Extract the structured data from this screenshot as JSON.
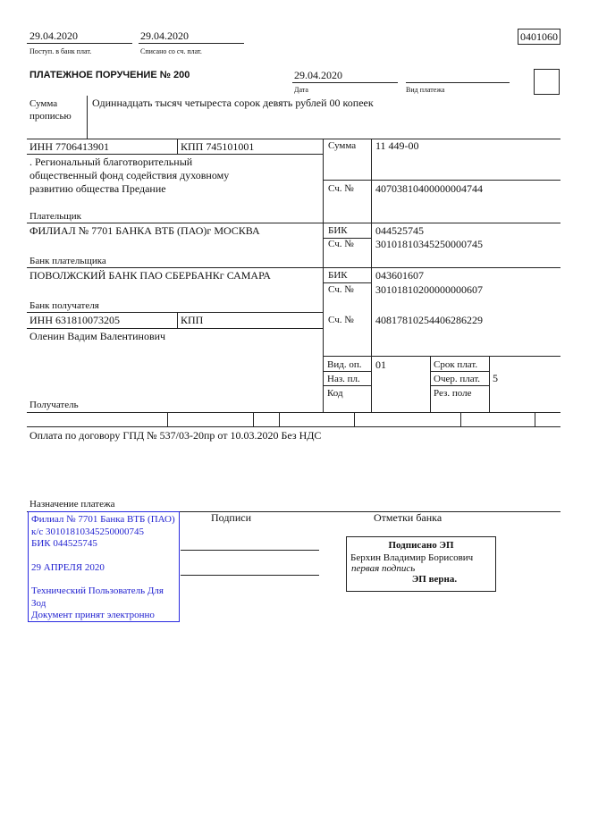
{
  "header": {
    "received_date": "29.04.2020",
    "received_label": "Поступ. в банк плат.",
    "debited_date": "29.04.2020",
    "debited_label": "Списано со сч. плат.",
    "form_code": "0401060"
  },
  "title": "ПЛАТЕЖНОЕ ПОРУЧЕНИЕ № 200",
  "date": {
    "value": "29.04.2020",
    "label": "Дата"
  },
  "payment_type": {
    "value": "",
    "label": "Вид платежа"
  },
  "amount_words": {
    "label_line1": "Сумма",
    "label_line2": "прописью",
    "value": "Одиннадцать тысяч четыреста сорок девять рублей 00 копеек"
  },
  "payer": {
    "inn": "ИНН 7706413901",
    "kpp": "КПП 745101001",
    "name_lines": [
      ". Региональный благотворительный",
      "общественный фонд содействия духовному",
      "развитию общества Предание"
    ],
    "label": "Плательщик",
    "amount_label": "Сумма",
    "amount": "11 449-00",
    "account_label": "Сч. №",
    "account": "40703810400000004744"
  },
  "payer_bank": {
    "name": "ФИЛИАЛ № 7701 БАНКА ВТБ (ПАО)г МОСКВА",
    "label": "Банк плательщика",
    "bik_label": "БИК",
    "bik": "044525745",
    "account_label": "Сч. №",
    "account": "30101810345250000745"
  },
  "recipient_bank": {
    "name": "ПОВОЛЖСКИЙ БАНК ПАО СБЕРБАНКг САМАРА",
    "label": "Банк получателя",
    "bik_label": "БИК",
    "bik": "043601607",
    "account_label": "Сч. №",
    "account": "30101810200000000607"
  },
  "recipient": {
    "inn": "ИНН 631810073205",
    "kpp": "КПП",
    "name": "Оленин Вадим Валентинович",
    "label": "Получатель",
    "account_label": "Сч. №",
    "account": "40817810254406286229"
  },
  "codes": {
    "op_type_label": "Вид. оп.",
    "op_type": "01",
    "purpose_label": "Наз. пл.",
    "code_label": "Код",
    "term_label": "Срок плат.",
    "priority_label": "Очер. плат.",
    "priority": "5",
    "reserve_label": "Рез. поле"
  },
  "purpose": {
    "text": "Оплата по договору ГПД № 537/03-20пр от 10.03.2020 Без НДС",
    "label": "Назначение платежа"
  },
  "signatures_label": "Подписи",
  "bank_marks_label": "Отметки банка",
  "bank_stamp": {
    "lines": [
      "Филиал № 7701 Банка ВТБ (ПАО)",
      "к/с 30101810345250000745",
      "БИК 044525745",
      "",
      "29 АПРЕЛЯ 2020",
      "",
      "Технический Пользователь Для",
      "Зод",
      "Документ принят электронно"
    ],
    "color": "#2222d0"
  },
  "e_signature": {
    "title": "Подписано ЭП",
    "name": "Берхин Владимир Борисович",
    "role": "первая подпись",
    "status": "ЭП верна."
  }
}
